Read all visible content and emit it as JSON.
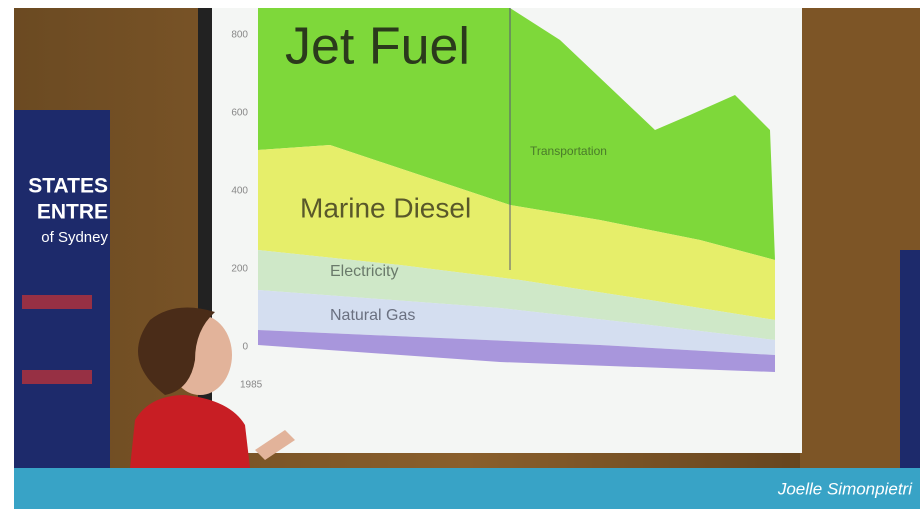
{
  "banner": {
    "lines": [
      "STATES",
      "ENTRE",
      "of Sydney"
    ]
  },
  "screen": {
    "labels": {
      "jet_fuel": "Jet Fuel",
      "marine_diesel": "Marine Diesel",
      "electricity": "Electricity",
      "natural_gas": "Natural Gas",
      "transportation": "Transportation"
    },
    "yticks": [
      "800",
      "600",
      "400",
      "200",
      "0"
    ],
    "xtick": "1985"
  },
  "caption": "Joelle Simonpietri"
}
